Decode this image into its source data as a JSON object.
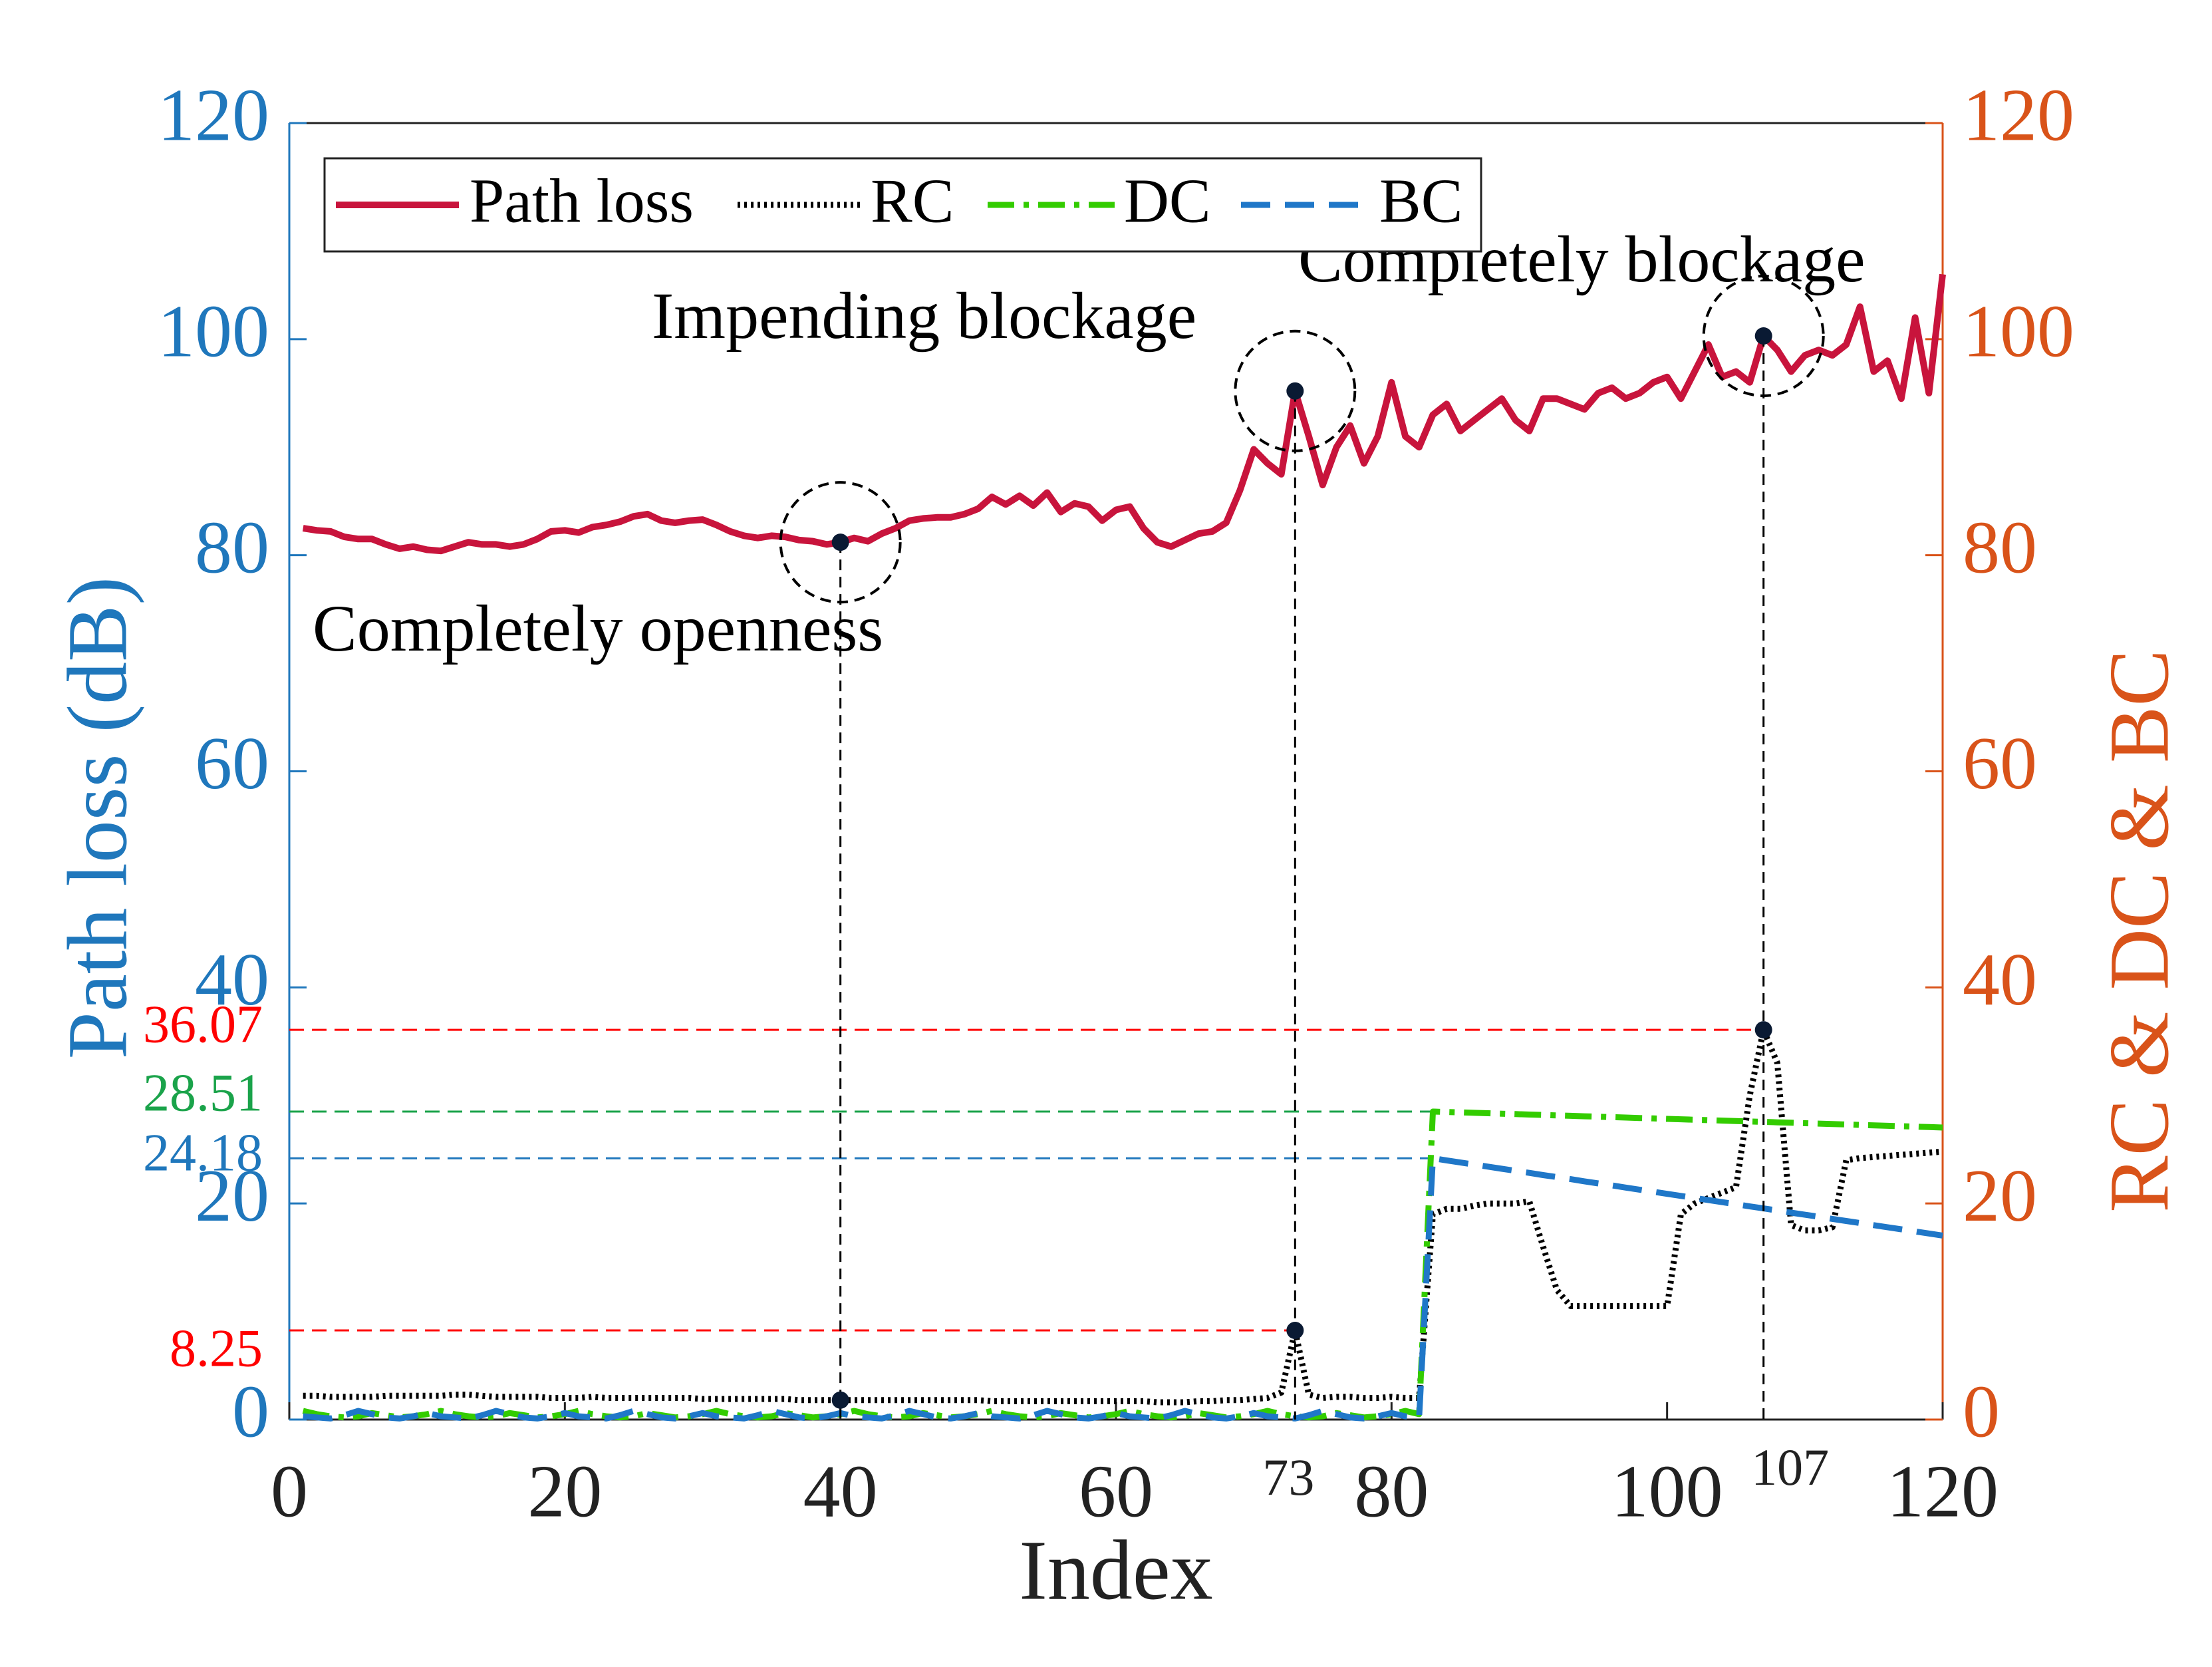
{
  "chart_data": {
    "type": "line",
    "xlabel": "Index",
    "ylabel": "Path loss (dB)",
    "y2label": "RC & DC & BC",
    "xlim": [
      0,
      120
    ],
    "xticks": [
      0,
      20,
      40,
      60,
      80,
      100,
      120
    ],
    "extra_xticks": [
      73,
      107
    ],
    "ylim": [
      0,
      120
    ],
    "yticks": [
      0,
      20,
      40,
      60,
      80,
      100,
      120
    ],
    "y2lim": [
      0,
      120
    ],
    "y2ticks": [
      0,
      20,
      40,
      60,
      80,
      100,
      120
    ],
    "ycolor": "#1f77bc",
    "y2color": "#d95319",
    "legend": "upper left",
    "x": [
      1,
      2,
      3,
      4,
      5,
      6,
      7,
      8,
      9,
      10,
      11,
      12,
      13,
      14,
      15,
      16,
      17,
      18,
      19,
      20,
      21,
      22,
      23,
      24,
      25,
      26,
      27,
      28,
      29,
      30,
      31,
      32,
      33,
      34,
      35,
      36,
      37,
      38,
      39,
      40,
      41,
      42,
      43,
      44,
      45,
      46,
      47,
      48,
      49,
      50,
      51,
      52,
      53,
      54,
      55,
      56,
      57,
      58,
      59,
      60,
      61,
      62,
      63,
      64,
      65,
      66,
      67,
      68,
      69,
      70,
      71,
      72,
      73,
      74,
      75,
      76,
      77,
      78,
      79,
      80,
      81,
      82,
      83,
      84,
      85,
      86,
      87,
      88,
      89,
      90,
      91,
      92,
      93,
      94,
      95,
      96,
      97,
      98,
      99,
      100,
      101,
      102,
      103,
      104,
      105,
      106,
      107,
      108,
      109,
      110,
      111,
      112,
      113,
      114,
      115,
      116,
      117,
      118,
      119,
      120
    ],
    "series": [
      {
        "name": "Path loss",
        "color": "#c8143c",
        "style": "solid",
        "values": [
          82.5,
          82.3,
          82.2,
          81.7,
          81.5,
          81.5,
          81,
          80.6,
          80.8,
          80.5,
          80.4,
          80.8,
          81.2,
          81,
          81,
          80.8,
          81,
          81.5,
          82.2,
          82.3,
          82.1,
          82.6,
          82.8,
          83.1,
          83.6,
          83.8,
          83.2,
          83,
          83.2,
          83.3,
          82.8,
          82.2,
          81.8,
          81.6,
          81.8,
          81.7,
          81.4,
          81.3,
          81.0,
          81.2,
          81.6,
          81.3,
          82,
          82.5,
          83.2,
          83.4,
          83.5,
          83.5,
          83.8,
          84.3,
          85.4,
          84.7,
          85.5,
          84.6,
          85.8,
          84,
          84.8,
          84.5,
          83.2,
          84.2,
          84.5,
          82.5,
          81.2,
          80.8,
          81.4,
          82,
          82.2,
          83,
          86,
          89.8,
          88.5,
          87.5,
          95.2,
          91,
          86.5,
          90,
          92,
          88.5,
          91,
          96,
          91,
          90,
          93,
          94,
          91.5,
          92.5,
          93.5,
          94.5,
          92.5,
          91.5,
          94.5,
          94.5,
          94,
          93.5,
          95,
          95.5,
          94.5,
          95,
          96,
          96.5,
          94.5,
          97,
          99.5,
          96.5,
          97,
          96,
          100.3,
          99,
          97,
          98.5,
          99,
          98.5,
          99.5,
          103,
          97,
          98,
          94.5,
          102,
          95,
          106
        ]
      },
      {
        "name": "RC",
        "color": "#000000",
        "style": "dotted",
        "axis": "y2",
        "values": [
          2.2,
          2.2,
          2.1,
          2.1,
          2.1,
          2.1,
          2.2,
          2.2,
          2.2,
          2.2,
          2.2,
          2.3,
          2.3,
          2.2,
          2.1,
          2.1,
          2.1,
          2.1,
          2.0,
          2.0,
          2.0,
          2.1,
          2.0,
          2.0,
          2.0,
          2.0,
          2.0,
          2.0,
          2.0,
          1.9,
          1.9,
          1.9,
          1.9,
          1.9,
          1.9,
          1.9,
          1.8,
          1.8,
          1.8,
          1.8,
          1.8,
          1.8,
          1.8,
          1.8,
          1.8,
          1.8,
          1.8,
          1.8,
          1.8,
          1.8,
          1.7,
          1.7,
          1.7,
          1.7,
          1.7,
          1.7,
          1.7,
          1.7,
          1.7,
          1.7,
          1.7,
          1.7,
          1.6,
          1.6,
          1.6,
          1.7,
          1.7,
          1.8,
          1.8,
          1.9,
          2.0,
          2.5,
          8.25,
          2.3,
          2.0,
          2.1,
          2.1,
          2.0,
          2.0,
          2.1,
          2.0,
          2.0,
          19,
          19.5,
          19.5,
          19.8,
          20,
          20,
          20,
          20.2,
          16,
          12,
          10.5,
          10.5,
          10.5,
          10.5,
          10.5,
          10.5,
          10.5,
          10.5,
          19,
          20,
          20.5,
          21,
          21.5,
          30,
          36.07,
          33,
          18,
          17.5,
          17.5,
          17.8,
          24,
          24.2,
          24.3,
          24.4,
          24.5,
          24.6,
          24.7,
          24.8
        ]
      },
      {
        "name": "DC",
        "color": "#33cc00",
        "style": "dashdot",
        "axis": "y2",
        "values": [
          0.8,
          0.5,
          0.3,
          0.2,
          0.3,
          0.6,
          0.4,
          0.2,
          0.3,
          0.5,
          0.8,
          0.5,
          0.3,
          0.2,
          0.3,
          0.6,
          0.4,
          0.2,
          0.3,
          0.5,
          0.8,
          0.5,
          0.3,
          0.2,
          0.3,
          0.6,
          0.4,
          0.2,
          0.3,
          0.5,
          0.8,
          0.5,
          0.3,
          0.2,
          0.3,
          0.6,
          0.4,
          0.2,
          0.3,
          0.5,
          0.8,
          0.5,
          0.3,
          0.2,
          0.3,
          0.6,
          0.4,
          0.2,
          0.3,
          0.5,
          0.8,
          0.5,
          0.3,
          0.2,
          0.3,
          0.6,
          0.4,
          0.2,
          0.3,
          0.5,
          0.8,
          0.5,
          0.3,
          0.2,
          0.3,
          0.6,
          0.4,
          0.2,
          0.3,
          0.5,
          0.8,
          0.5,
          0.3,
          0.2,
          0.3,
          0.6,
          0.4,
          0.2,
          0.3,
          0.5,
          0.8,
          0.5,
          28.51,
          28.47,
          28.43,
          28.39,
          28.35,
          28.31,
          28.27,
          28.23,
          28.19,
          28.15,
          28.11,
          28.07,
          28.03,
          27.99,
          27.95,
          27.91,
          27.87,
          27.83,
          27.79,
          27.75,
          27.71,
          27.67,
          27.63,
          27.59,
          27.55,
          27.51,
          27.47,
          27.43,
          27.39,
          27.35,
          27.31,
          27.27,
          27.23,
          27.19,
          27.15,
          27.11,
          27.07,
          27.03
        ]
      },
      {
        "name": "BC",
        "color": "#1f77c8",
        "style": "dashed",
        "axis": "y2",
        "values": [
          0.3,
          0.2,
          0.1,
          0.4,
          0.8,
          0.5,
          0.2,
          0.1,
          0.3,
          0.6,
          0.3,
          0.2,
          0.1,
          0.4,
          0.8,
          0.5,
          0.2,
          0.1,
          0.3,
          0.6,
          0.3,
          0.2,
          0.1,
          0.4,
          0.8,
          0.5,
          0.2,
          0.1,
          0.3,
          0.6,
          0.3,
          0.2,
          0.1,
          0.4,
          0.8,
          0.5,
          0.2,
          0.1,
          0.3,
          0.6,
          0.3,
          0.2,
          0.1,
          0.4,
          0.8,
          0.5,
          0.2,
          0.1,
          0.3,
          0.6,
          0.3,
          0.2,
          0.1,
          0.4,
          0.8,
          0.5,
          0.2,
          0.1,
          0.3,
          0.6,
          0.3,
          0.2,
          0.1,
          0.4,
          0.8,
          0.5,
          0.2,
          0.1,
          0.3,
          0.6,
          0.3,
          0.2,
          0.1,
          0.4,
          0.8,
          0.5,
          0.2,
          0.1,
          0.3,
          0.6,
          0.3,
          0.2,
          24.18,
          23.99,
          23.79,
          23.6,
          23.41,
          23.21,
          23.02,
          22.83,
          22.63,
          22.44,
          22.25,
          22.05,
          21.86,
          21.67,
          21.47,
          21.28,
          21.09,
          20.89,
          20.7,
          20.51,
          20.31,
          20.12,
          19.93,
          19.73,
          19.54,
          19.35,
          19.15,
          18.96,
          18.77,
          18.57,
          18.38,
          18.19,
          17.99,
          17.8,
          17.61,
          17.41,
          17.22,
          17.03
        ]
      }
    ],
    "highlight_x": [
      40,
      73,
      107
    ],
    "annotations": [
      {
        "text": "Completely openness",
        "x": 40
      },
      {
        "text": "Impending blockage",
        "x": 73
      },
      {
        "text": "Completely blockage",
        "x": 107
      }
    ],
    "reference_lines": [
      {
        "value": 36.07,
        "x": 107,
        "color": "#ff0000"
      },
      {
        "value": 28.51,
        "x": 83,
        "color": "#1aa34a"
      },
      {
        "value": 24.18,
        "x": 83,
        "color": "#1f77bc"
      },
      {
        "value": 8.25,
        "x": 73,
        "color": "#ff0000"
      }
    ]
  }
}
